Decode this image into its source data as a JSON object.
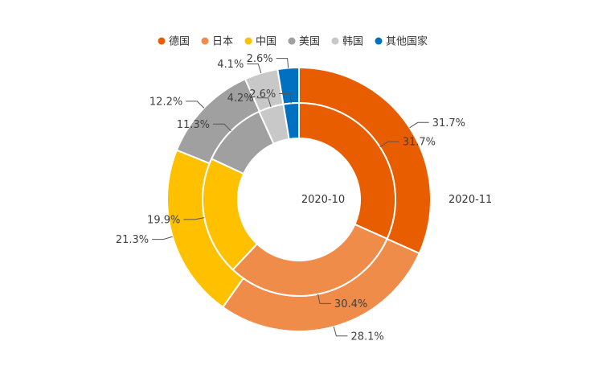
{
  "chart_data": {
    "type": "pie",
    "variant": "nested-donut",
    "legend": {
      "placement": "top-center",
      "entries": [
        {
          "name": "德国",
          "color": "#E85D00"
        },
        {
          "name": "日本",
          "color": "#F08C4A"
        },
        {
          "name": "中国",
          "color": "#FFC000"
        },
        {
          "name": "美国",
          "color": "#A0A0A0"
        },
        {
          "name": "韩国",
          "color": "#C8C8C8"
        },
        {
          "name": "其他国家",
          "color": "#0070C0"
        }
      ]
    },
    "categories": [
      "德国",
      "日本",
      "中国",
      "美国",
      "韩国",
      "其他国家"
    ],
    "series": [
      {
        "name": "2020-10",
        "ring": "inner",
        "values": [
          31.7,
          30.4,
          19.9,
          11.3,
          4.2,
          2.6
        ],
        "labels": [
          "31.7%",
          "30.4%",
          "19.9%",
          "11.3%",
          "4.2%",
          "2.6%"
        ]
      },
      {
        "name": "2020-11",
        "ring": "outer",
        "values": [
          31.7,
          28.1,
          21.3,
          12.2,
          4.1,
          2.6
        ],
        "labels": [
          "31.7%",
          "28.1%",
          "21.3%",
          "12.2%",
          "4.1%",
          "2.6%"
        ]
      }
    ]
  }
}
